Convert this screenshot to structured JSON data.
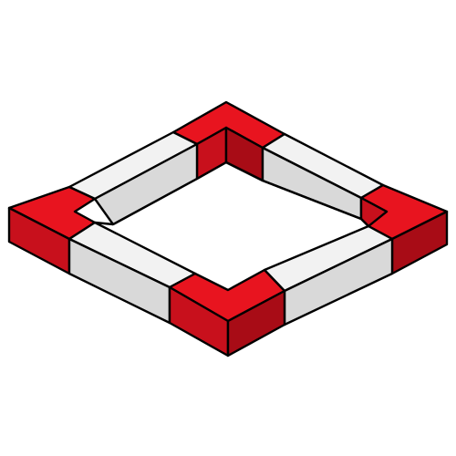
{
  "illustration": {
    "subject": "isometric-square-frame-of-blocks",
    "colors": {
      "red_top": "#e8141f",
      "red_side_left": "#c8101c",
      "red_side_right": "#a80c16",
      "white_top": "#f2f2f2",
      "white_side": "#d9d9d9",
      "outline": "#000000",
      "background": "#ffffff"
    }
  }
}
